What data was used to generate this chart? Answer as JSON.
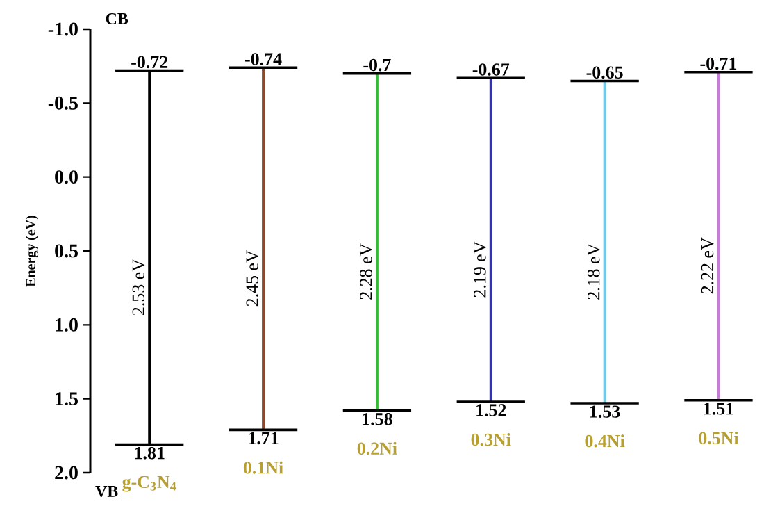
{
  "chart_data": {
    "type": "bar",
    "ylabel": "Energy (eV)",
    "categories": [
      "g-C$_{3}$N$_{4}$",
      "0.1Ni",
      "0.2Ni",
      "0.3Ni",
      "0.4Ni",
      "0.5Ni"
    ],
    "base": [
      -0.72,
      -0.74,
      -0.7,
      -0.67,
      -0.65,
      -0.71
    ],
    "values": [
      2.53,
      2.45,
      2.28,
      2.19,
      2.18,
      2.22
    ],
    "value_labels": [
      "2.53 eV",
      "2.45 eV",
      "2.28 eV",
      "2.19 eV",
      "2.18 eV",
      "2.22 eV"
    ],
    "colors": [
      "#000000",
      "#8b4a2b",
      "#33bb33",
      "#3333aa",
      "#66ccee",
      "#cc77dd"
    ],
    "ylim": [
      2.0,
      -1.0
    ],
    "yticks": [
      {
        "value": -1.0,
        "label": "-1.0"
      },
      {
        "value": -0.5,
        "label": "-0.5"
      },
      {
        "value": 0.0,
        "label": "0.0"
      },
      {
        "value": 0.5,
        "label": "0.5"
      },
      {
        "value": 1.0,
        "label": "1.0"
      },
      {
        "value": 1.5,
        "label": "1.5"
      },
      {
        "value": 2.0,
        "label": "2.0"
      }
    ],
    "grid": false,
    "annotations": [
      "CB",
      "VB",
      {
        "text": "-0.72",
        "x": "g-C$_{3}$N$_{4}$",
        "y": -0.72
      },
      {
        "text": "-0.74",
        "x": "0.1Ni",
        "y": -0.74
      },
      {
        "text": "-0.7",
        "x": "0.2Ni",
        "y": -0.7
      },
      {
        "text": "-0.67",
        "x": "0.3Ni",
        "y": -0.67
      },
      {
        "text": "-0.65",
        "x": "0.4Ni",
        "y": -0.65
      },
      {
        "text": "-0.71",
        "x": "0.5Ni",
        "y": -0.71
      },
      {
        "text": "1.81",
        "x": "g-C$_{3}$N$_{4}$",
        "y": 1.81
      },
      {
        "text": "1.71",
        "x": "0.1Ni",
        "y": 1.71
      },
      {
        "text": "1.58",
        "x": "0.2Ni",
        "y": 1.58
      },
      {
        "text": "1.52",
        "x": "0.3Ni",
        "y": 1.52
      },
      {
        "text": "1.53",
        "x": "0.4Ni",
        "y": 1.53
      },
      {
        "text": "1.51",
        "x": "0.5Ni",
        "y": 1.51
      }
    ]
  }
}
